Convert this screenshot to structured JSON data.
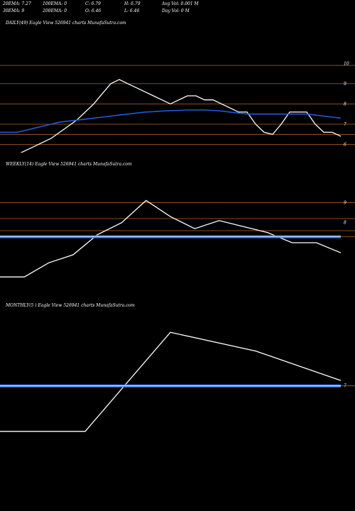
{
  "header": {
    "row1": [
      "20EMA: 7.27",
      "100EMA: 0",
      "C: 6.79",
      "H: 6.79",
      "Avg Vol: 0.001 M"
    ],
    "row2": [
      "30EMA: 9",
      "200EMA: 0",
      "O: 6.46",
      "L: 6.46",
      "Day Vol: 0  M"
    ]
  },
  "colors": {
    "price": "#ffffff",
    "ema": "#1e5ad8",
    "ema_band": "#3c7df0",
    "level": "#b8642c",
    "bg": "#000000"
  },
  "chart_data": [
    {
      "type": "line",
      "title": "DAILY(49) Eagle  View  526941 charts MunafaSutra.com",
      "yticks": [
        10,
        9,
        8,
        7,
        6
      ],
      "ylim": [
        5.6,
        10.5
      ],
      "levels": [
        9.9,
        9,
        8,
        7,
        6.5,
        6
      ],
      "series": [
        {
          "role": "price",
          "values": [
            5.3,
            5.3,
            5.5,
            5.7,
            5.9,
            6.1,
            6.3,
            6.6,
            6.9,
            7.2,
            7.6,
            8.0,
            8.5,
            9.0,
            9.2,
            9.0,
            8.8,
            8.6,
            8.4,
            8.2,
            8.0,
            8.2,
            8.4,
            8.4,
            8.2,
            8.2,
            8.0,
            7.8,
            7.6,
            7.6,
            7.0,
            6.6,
            6.5,
            7.0,
            7.6,
            7.6,
            7.6,
            7.0,
            6.6,
            6.6,
            6.4
          ]
        },
        {
          "role": "ema",
          "values": [
            6.6,
            6.6,
            6.6,
            6.7,
            6.8,
            6.9,
            7.0,
            7.1,
            7.15,
            7.2,
            7.25,
            7.3,
            7.35,
            7.4,
            7.45,
            7.5,
            7.55,
            7.6,
            7.62,
            7.65,
            7.67,
            7.68,
            7.7,
            7.7,
            7.7,
            7.68,
            7.65,
            7.6,
            7.55,
            7.5,
            7.5,
            7.5,
            7.5,
            7.5,
            7.5,
            7.5,
            7.5,
            7.45,
            7.4,
            7.35,
            7.3
          ]
        }
      ]
    },
    {
      "type": "line",
      "title": "WEEKLY(14) Eagle  View  526941 charts MunafaSutra.com",
      "yticks": [
        9,
        8
      ],
      "ylim": [
        4.6,
        10.6
      ],
      "levels": [
        9,
        8.2,
        7.6,
        7.3
      ],
      "series": [
        {
          "role": "price",
          "values": [
            5.3,
            5.3,
            6.0,
            6.4,
            7.4,
            8.0,
            9.1,
            8.3,
            7.7,
            8.1,
            7.8,
            7.5,
            7.0,
            7.0,
            6.5
          ]
        },
        {
          "role": "ema",
          "values": [
            7.3,
            7.3,
            7.3,
            7.3,
            7.3,
            7.3,
            7.3,
            7.3,
            7.3,
            7.3,
            7.3,
            7.3,
            7.3,
            7.3,
            7.3
          ]
        }
      ]
    },
    {
      "type": "line",
      "title": "MONTHLY(5               ) Eagle  View  526941 charts MunafaSutra.com",
      "yticks": [
        7
      ],
      "ylim": [
        4.5,
        9.8
      ],
      "levels": [
        7
      ],
      "series": [
        {
          "role": "price",
          "values": [
            5.3,
            5.3,
            9.0,
            8.3,
            7.2
          ]
        },
        {
          "role": "ema",
          "values": [
            7.0,
            7.0,
            7.0,
            7.0,
            7.0
          ]
        }
      ]
    }
  ]
}
